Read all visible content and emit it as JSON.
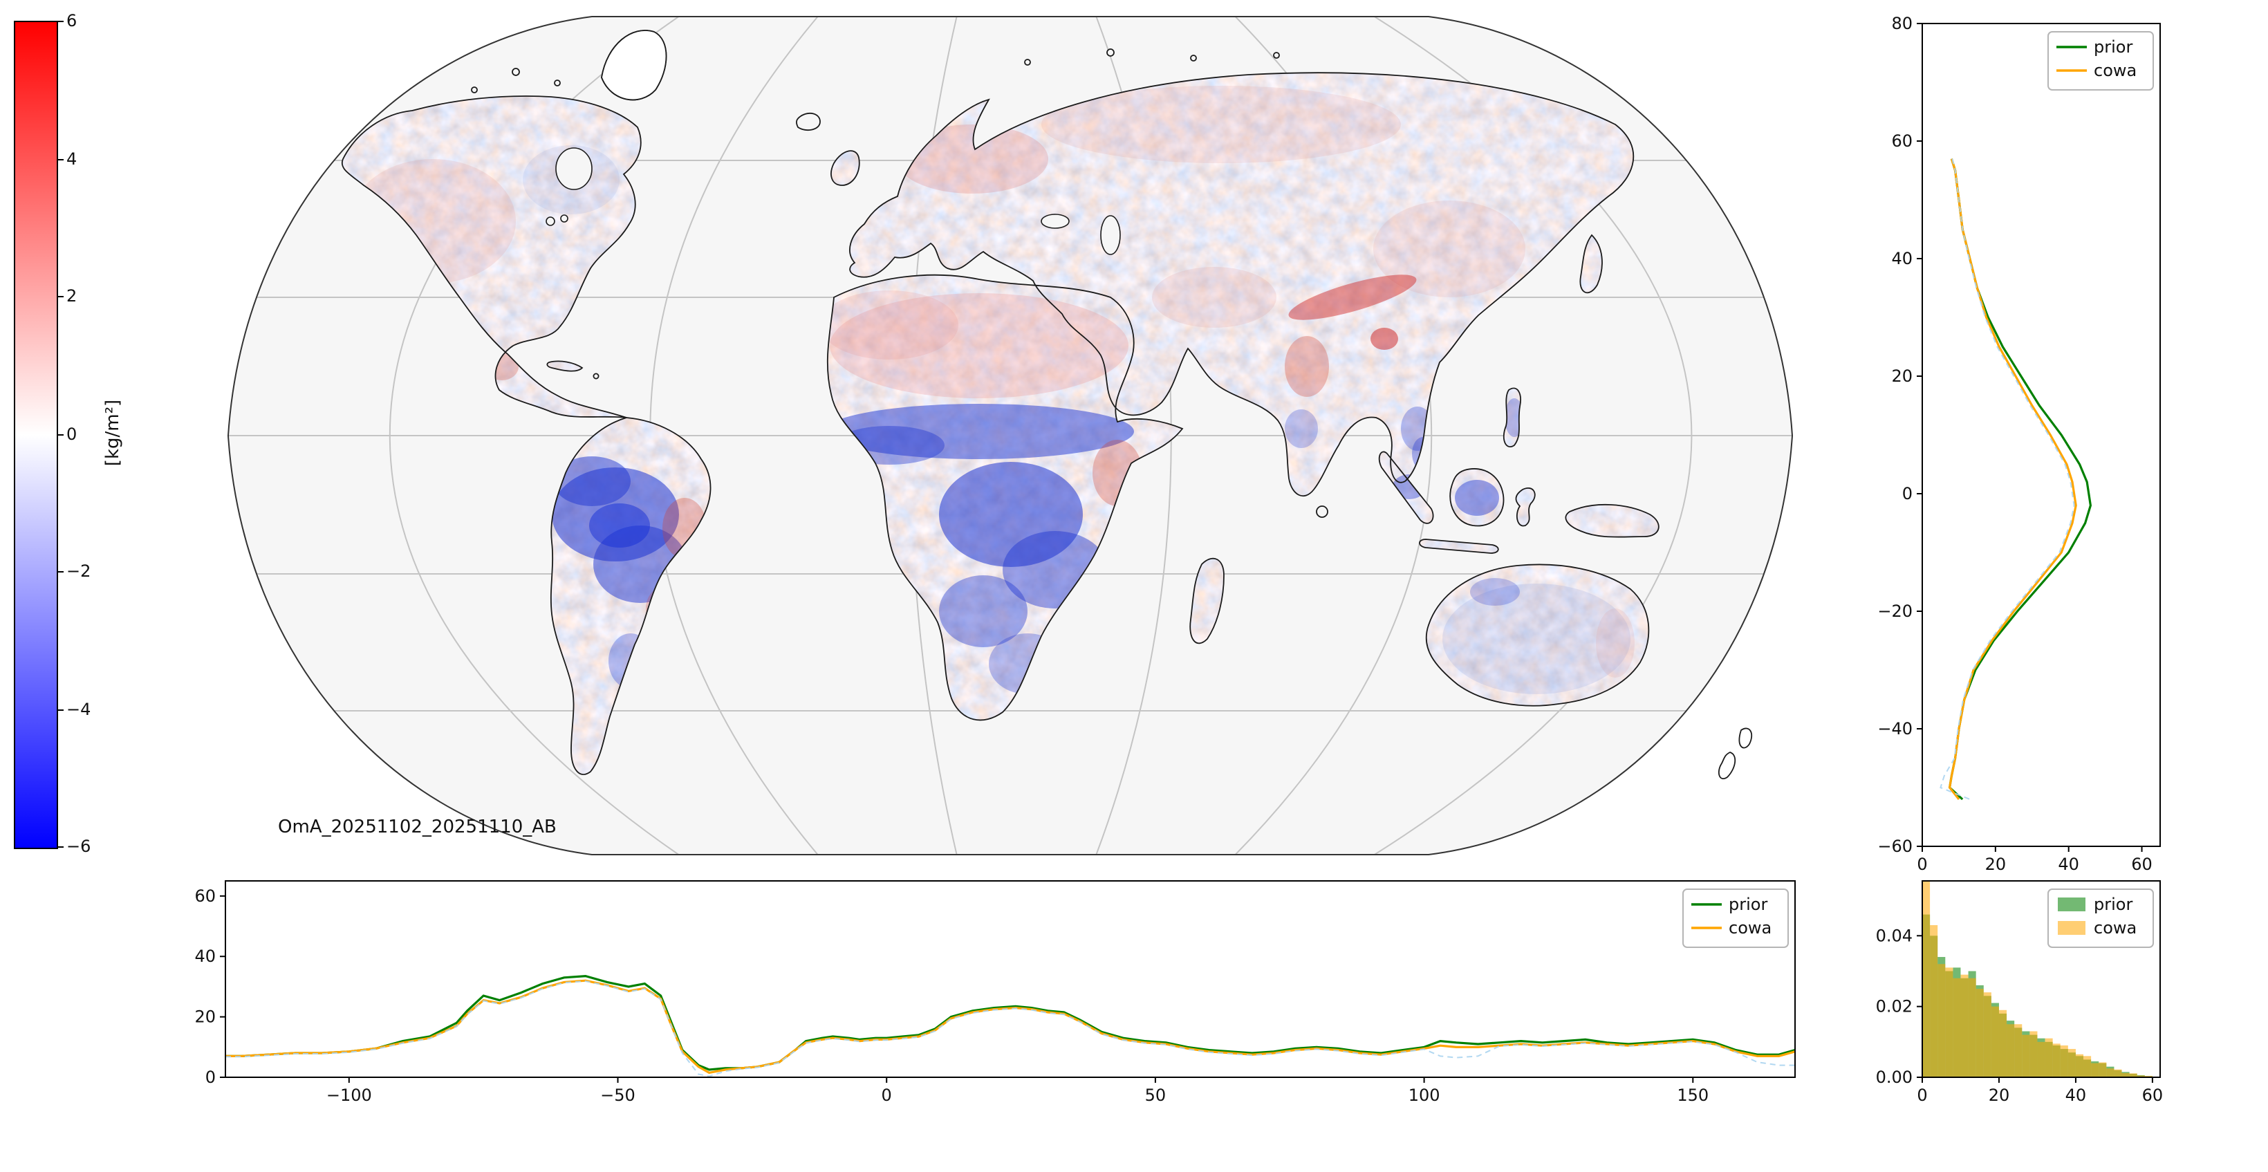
{
  "figure": {
    "background": "#ffffff"
  },
  "colorbar": {
    "label": "[kg/m²]",
    "range": [
      -6,
      6
    ],
    "tick_labels": [
      "6",
      "4",
      "2",
      "0",
      "−2",
      "−4",
      "−6"
    ],
    "colors_top_to_bottom": [
      "#ff0000",
      "#ffffff",
      "#0000ff"
    ]
  },
  "colors": {
    "prior": "#008000",
    "cowa": "#ffa500",
    "unlabeled_aux": "#aad4f0",
    "graticule": "#c4c4c4",
    "coastline": "#1a1a1a",
    "ocean": "#f6f6f6"
  },
  "chart_data": [
    {
      "type": "heatmap",
      "name": "oma-difference-map",
      "label": "OmA_20251102_20251110_AB",
      "projection": "robinson-like world map",
      "units": "kg/m²",
      "value_range": [
        -6,
        6
      ],
      "colormap": "blue-white-red",
      "description": "Observation-minus-analysis total column water vapour differences over land; strong negative (blue) over Amazon, Sahel and Congo basins, weak positive (red) over Sahara edges, Europe, India/Himalaya."
    },
    {
      "type": "line",
      "name": "zonal-mean-profile",
      "x_field": "value",
      "y_field": "latitude",
      "x_range": [
        0,
        65
      ],
      "y_range": [
        -60,
        80
      ],
      "xticks": [
        {
          "v": 0,
          "label": "0"
        },
        {
          "v": 20,
          "label": "20"
        },
        {
          "v": 40,
          "label": "40"
        },
        {
          "v": 60,
          "label": "60"
        }
      ],
      "yticks": [
        {
          "v": 80,
          "label": "80"
        },
        {
          "v": 60,
          "label": "60"
        },
        {
          "v": 40,
          "label": "40"
        },
        {
          "v": 20,
          "label": "20"
        },
        {
          "v": 0,
          "label": "0"
        },
        {
          "v": -20,
          "label": "−20"
        },
        {
          "v": -40,
          "label": "−40"
        },
        {
          "v": -60,
          "label": "−60"
        }
      ],
      "legend": [
        "prior",
        "cowa"
      ],
      "latitude": [
        57,
        55,
        50,
        45,
        40,
        35,
        30,
        25,
        20,
        15,
        10,
        5,
        2,
        0,
        -2,
        -5,
        -10,
        -15,
        -20,
        -25,
        -30,
        -35,
        -40,
        -45,
        -48,
        -50,
        -52
      ],
      "series": [
        {
          "name": "prior",
          "color": "#008000",
          "value": [
            8,
            9,
            10,
            11,
            13,
            15,
            18,
            22,
            27,
            32,
            38,
            43,
            45,
            45.5,
            46,
            44.5,
            40,
            33,
            26,
            19.5,
            14.5,
            11.5,
            10,
            9,
            8,
            7.5,
            11
          ]
        },
        {
          "name": "cowa",
          "color": "#ffa500",
          "value": [
            8,
            9,
            10,
            11,
            13,
            15,
            17.5,
            21,
            25.5,
            30,
            35,
            39.5,
            41,
            41.5,
            42,
            41,
            38,
            31.5,
            25,
            19,
            14,
            11.5,
            10,
            9,
            8,
            7.5,
            10
          ]
        },
        {
          "name": "unlabeled",
          "color": "#aad4f0",
          "dashed": true,
          "opacity": 0.9,
          "width": 1,
          "value": [
            8.2,
            9,
            10,
            11,
            12.8,
            14.8,
            17.2,
            20.5,
            25,
            29.5,
            34.5,
            39,
            40.5,
            41,
            41.5,
            40.5,
            37.5,
            31,
            24.5,
            18.5,
            13.8,
            11.2,
            9.8,
            8.8,
            6,
            5,
            13
          ]
        }
      ]
    },
    {
      "type": "line",
      "name": "meridional-mean-profile",
      "x_field": "longitude",
      "y_field": "value",
      "x_range": [
        -123,
        169
      ],
      "y_range": [
        0,
        65
      ],
      "xticks": [
        {
          "v": -100,
          "label": "−100"
        },
        {
          "v": -50,
          "label": "−50"
        },
        {
          "v": 0,
          "label": "0"
        },
        {
          "v": 50,
          "label": "50"
        },
        {
          "v": 100,
          "label": "100"
        },
        {
          "v": 150,
          "label": "150"
        }
      ],
      "yticks": [
        {
          "v": 60,
          "label": "60"
        },
        {
          "v": 40,
          "label": "40"
        },
        {
          "v": 20,
          "label": "20"
        },
        {
          "v": 0,
          "label": "0"
        }
      ],
      "legend": [
        "prior",
        "cowa"
      ],
      "longitude": [
        -123,
        -120,
        -115,
        -110,
        -105,
        -100,
        -95,
        -90,
        -85,
        -80,
        -78,
        -75,
        -72,
        -68,
        -64,
        -60,
        -56,
        -52,
        -48,
        -45,
        -42,
        -40,
        -38,
        -35,
        -33,
        -30,
        -27,
        -24,
        -20,
        -17,
        -15,
        -12,
        -10,
        -7,
        -5,
        -2,
        0,
        3,
        6,
        9,
        12,
        16,
        20,
        24,
        27,
        30,
        33,
        36,
        40,
        44,
        48,
        52,
        56,
        60,
        64,
        68,
        72,
        76,
        80,
        84,
        88,
        92,
        96,
        100,
        103,
        106,
        110,
        114,
        118,
        122,
        126,
        130,
        134,
        138,
        142,
        146,
        150,
        154,
        158,
        162,
        166,
        169
      ],
      "series": [
        {
          "name": "prior",
          "color": "#008000",
          "value": [
            7,
            7,
            7.5,
            8,
            8,
            8.5,
            9.5,
            12,
            13.5,
            18,
            22,
            27,
            25.5,
            28,
            31,
            33,
            33.5,
            31.5,
            30,
            31,
            27,
            18,
            9,
            4,
            2.5,
            3,
            3,
            3.5,
            5,
            9,
            12,
            13,
            13.5,
            13,
            12.5,
            13,
            13,
            13.5,
            14,
            16,
            20,
            22,
            23,
            23.5,
            23,
            22,
            21.5,
            19,
            15,
            13,
            12,
            11.5,
            10,
            9,
            8.5,
            8,
            8.5,
            9.5,
            10,
            9.5,
            8.5,
            8,
            9,
            10,
            12,
            11.5,
            11,
            11.5,
            12,
            11.5,
            12,
            12.5,
            11.5,
            11,
            11.5,
            12,
            12.5,
            11.5,
            9,
            7.5,
            7.5,
            9
          ]
        },
        {
          "name": "cowa",
          "color": "#ffa500",
          "value": [
            7,
            7,
            7.5,
            8,
            8,
            8.5,
            9.5,
            11.5,
            13,
            17,
            21,
            25.5,
            24.5,
            26.5,
            29.5,
            31.5,
            32,
            30.5,
            28.5,
            29.5,
            26,
            17,
            8.5,
            3.5,
            1.5,
            2.5,
            3,
            3.5,
            5,
            9,
            11.5,
            12.5,
            13,
            12.5,
            12,
            12.5,
            12.5,
            13,
            13.5,
            15.5,
            19.5,
            21.5,
            22.5,
            23,
            22.5,
            21.5,
            21,
            18.5,
            14.5,
            12.5,
            11.5,
            11,
            9.5,
            8.5,
            8,
            7.5,
            8,
            9,
            9.5,
            9,
            8,
            7.5,
            8.5,
            9.5,
            10.5,
            10,
            10,
            10.5,
            11,
            10.5,
            11,
            11.5,
            11,
            10.5,
            11,
            11.5,
            12,
            11,
            8.5,
            7,
            7,
            8.5
          ]
        },
        {
          "name": "unlabeled",
          "color": "#aad4f0",
          "dashed": true,
          "opacity": 0.9,
          "width": 1,
          "value": [
            6.8,
            6.8,
            7.3,
            7.8,
            7.8,
            8.3,
            9.3,
            11.3,
            12.8,
            16.8,
            20.8,
            25.3,
            24.3,
            26.3,
            29.3,
            31.3,
            31.8,
            30.3,
            28.3,
            29.3,
            25.8,
            16.8,
            8,
            1,
            0.3,
            2,
            2.8,
            3.3,
            4.8,
            8.8,
            11.3,
            12.3,
            12.8,
            12.3,
            11.8,
            12.3,
            12.3,
            12.8,
            13.3,
            15.3,
            19.3,
            21.3,
            22.3,
            22.8,
            22.3,
            21.3,
            20.8,
            18.3,
            14.3,
            12.3,
            11.3,
            10.8,
            9.3,
            8.3,
            7.8,
            7.3,
            7.8,
            8.8,
            9.3,
            8.8,
            7.8,
            7.3,
            8.3,
            9.3,
            7,
            6.5,
            7,
            10.3,
            10.8,
            10.3,
            10.8,
            11.3,
            10.8,
            10.3,
            10.8,
            11.3,
            11.8,
            10.8,
            8.3,
            5,
            4,
            4,
            8
          ]
        }
      ]
    },
    {
      "type": "histogram",
      "name": "value-distribution",
      "x_range": [
        0,
        62
      ],
      "y_range": [
        0,
        0.0555
      ],
      "bin_start": 0,
      "bin_width": 2,
      "xticks": [
        {
          "v": 0,
          "label": "0"
        },
        {
          "v": 20,
          "label": "20"
        },
        {
          "v": 40,
          "label": "40"
        },
        {
          "v": 60,
          "label": "60"
        }
      ],
      "yticks": [
        {
          "v": 0,
          "label": "0.00"
        },
        {
          "v": 0.02,
          "label": "0.02"
        },
        {
          "v": 0.04,
          "label": "0.04"
        }
      ],
      "legend": [
        "prior",
        "cowa"
      ],
      "series": [
        {
          "name": "prior",
          "color": "#008000",
          "opacity": 0.55,
          "values": [
            0.046,
            0.04,
            0.034,
            0.03,
            0.031,
            0.028,
            0.03,
            0.026,
            0.023,
            0.021,
            0.018,
            0.016,
            0.014,
            0.013,
            0.012,
            0.011,
            0.01,
            0.009,
            0.008,
            0.007,
            0.006,
            0.005,
            0.0045,
            0.004,
            0.003,
            0.002,
            0.0015,
            0.001,
            0.0006,
            0.0003
          ]
        },
        {
          "name": "cowa",
          "color": "#ffa500",
          "opacity": 0.55,
          "values": [
            0.056,
            0.043,
            0.032,
            0.031,
            0.028,
            0.029,
            0.028,
            0.025,
            0.024,
            0.02,
            0.019,
            0.015,
            0.015,
            0.012,
            0.013,
            0.01,
            0.011,
            0.0095,
            0.009,
            0.008,
            0.0065,
            0.006,
            0.004,
            0.0042,
            0.0025,
            0.0022,
            0.0012,
            0.0011,
            0.0005,
            0.0004
          ]
        }
      ]
    }
  ]
}
